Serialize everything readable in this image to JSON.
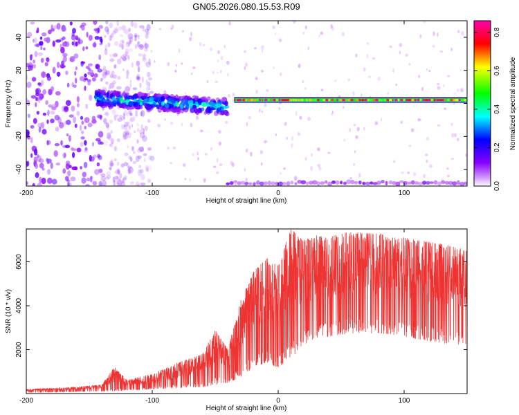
{
  "chart_data": [
    {
      "type": "heatmap",
      "title": "GN05.2026.080.15.53.R09",
      "xlabel": "Height of straight line (km)",
      "ylabel": "Frequency (Hz)",
      "xlim": [
        -200,
        150
      ],
      "ylim": [
        -50,
        50
      ],
      "x_ticks": [
        -200,
        -100,
        0,
        100
      ],
      "y_ticks": [
        -40,
        -20,
        0,
        20,
        40
      ],
      "colorbar": {
        "label": "Normalized spectral amplitude",
        "range": [
          0,
          0.86
        ],
        "ticks": [
          "0.0",
          "0.2",
          "0.4",
          "0.6",
          "0.8"
        ],
        "colors": [
          "#ffffff",
          "#8800ff",
          "#0000ff",
          "#00ffff",
          "#00ff00",
          "#ffff00",
          "#ff0000",
          "#ff00aa"
        ]
      },
      "features": [
        {
          "name": "scattered noise",
          "x_range": [
            -200,
            -140
          ],
          "freq_range": [
            -50,
            50
          ],
          "amplitude": 0.05
        },
        {
          "name": "broadband signal",
          "x_range": [
            -145,
            -40
          ],
          "freq_range": [
            -10,
            10
          ],
          "amplitude": 0.3
        },
        {
          "name": "narrow carrier",
          "x_range": [
            -35,
            150
          ],
          "freq_center": 2,
          "amplitude": 0.86
        },
        {
          "name": "low edge band",
          "x_range": [
            -40,
            150
          ],
          "freq_center": -48,
          "amplitude": 0.05
        }
      ]
    },
    {
      "type": "line",
      "xlabel": "Height of straight line (km)",
      "ylabel": "SNR (10 * v/v)",
      "xlim": [
        -200,
        150
      ],
      "ylim": [
        0,
        7500
      ],
      "x_ticks": [
        -200,
        -100,
        0,
        100
      ],
      "y_ticks": [
        2000,
        4000,
        6000
      ],
      "series": [
        {
          "name": "SNR",
          "color": "#ee3333",
          "x": [
            -200,
            -180,
            -160,
            -140,
            -130,
            -120,
            -100,
            -80,
            -60,
            -50,
            -40,
            -30,
            -20,
            -10,
            0,
            10,
            20,
            30,
            40,
            50,
            60,
            70,
            80,
            90,
            100,
            110,
            120,
            130,
            140,
            150
          ],
          "low": [
            50,
            60,
            80,
            100,
            120,
            150,
            200,
            250,
            300,
            400,
            500,
            700,
            1200,
            1400,
            1200,
            1600,
            2200,
            2500,
            2600,
            2700,
            2750,
            2750,
            2750,
            2700,
            2600,
            2500,
            2400,
            2300,
            2250,
            2200
          ],
          "high": [
            200,
            250,
            300,
            400,
            1200,
            600,
            900,
            1400,
            1800,
            2900,
            2000,
            4200,
            5500,
            6200,
            5800,
            7500,
            7000,
            7200,
            7100,
            7300,
            7350,
            7300,
            7300,
            7100,
            7100,
            7000,
            6900,
            6800,
            6700,
            6500
          ]
        }
      ]
    }
  ]
}
